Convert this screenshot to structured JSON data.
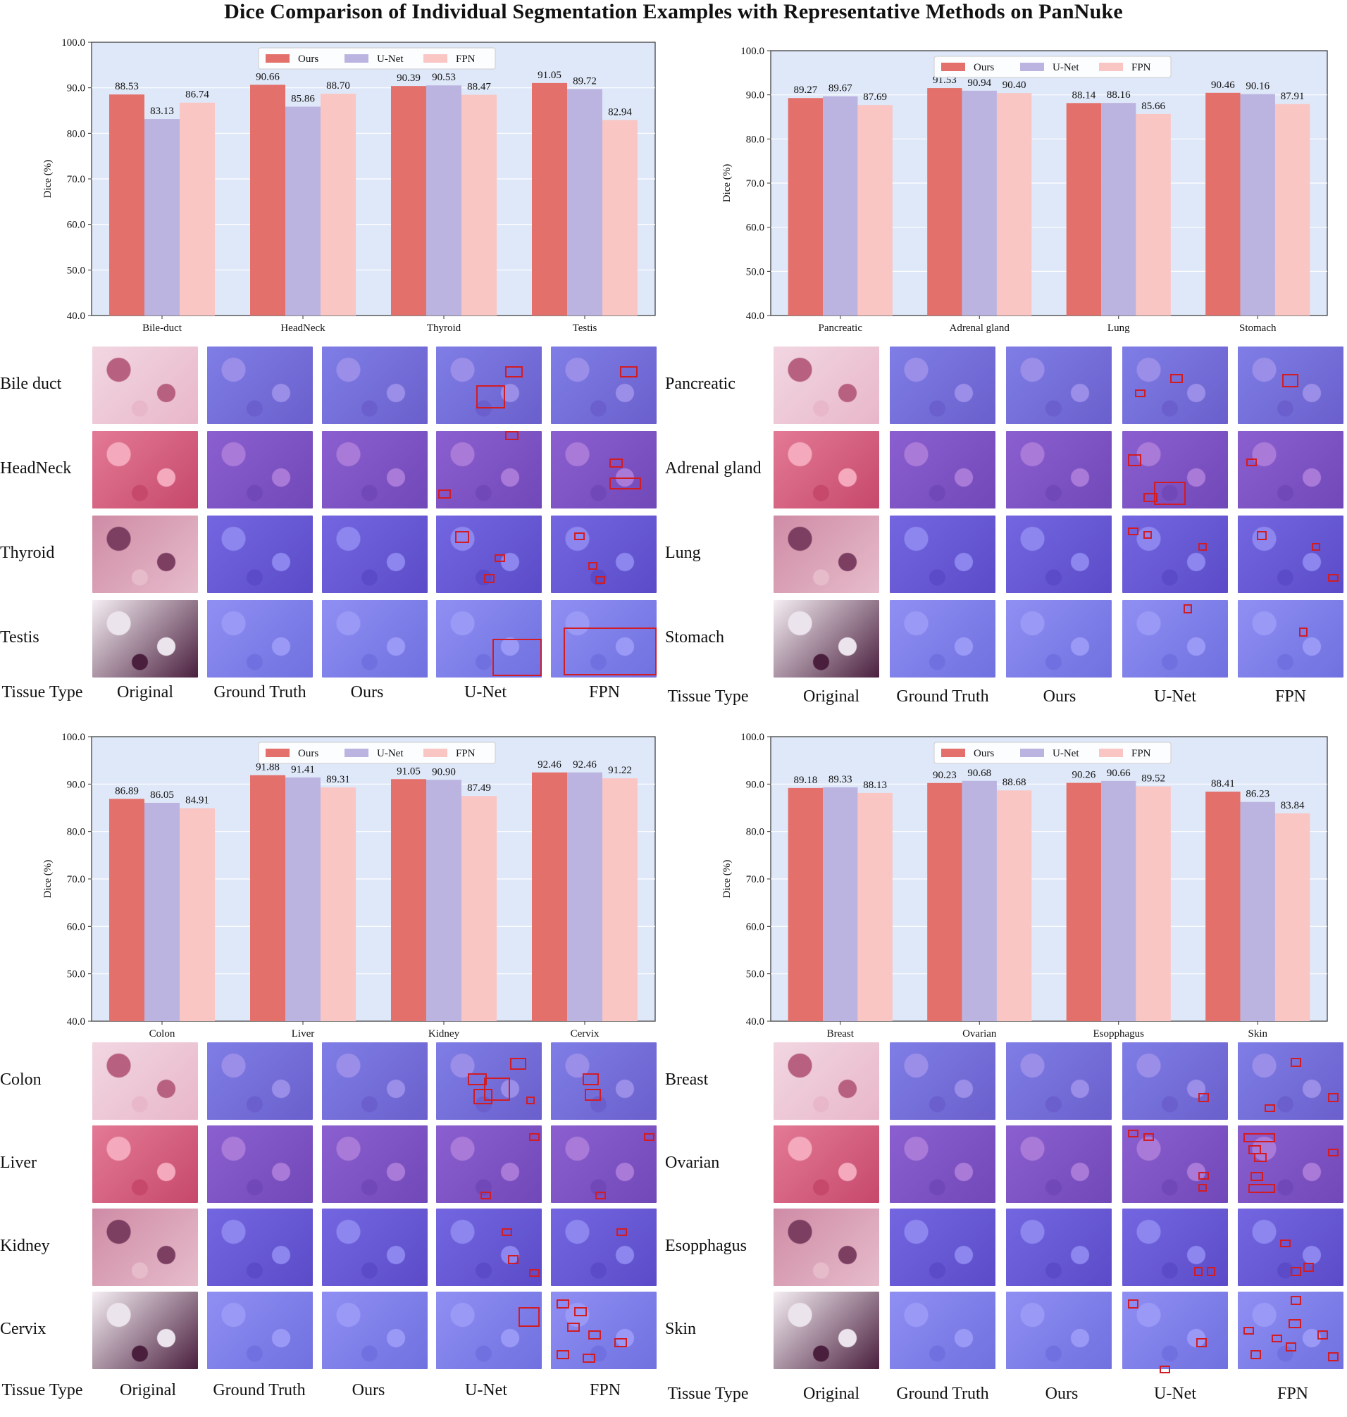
{
  "title": "Dice Comparison of Individual Segmentation Examples with Representative Methods on PanNuke",
  "colors": {
    "ours": "#e3706a",
    "unet": "#bbb4e0",
    "fpn": "#f9c6c4",
    "plot_bg": "#dfe8f8",
    "box": "#d11c24"
  },
  "legend": [
    "Ours",
    "U-Net",
    "FPN"
  ],
  "ylabel": "Dice (%)",
  "column_labels": [
    "Tissue Type",
    "Original",
    "Ground Truth",
    "Ours",
    "U-Net",
    "FPN"
  ],
  "chart_data": [
    {
      "type": "bar",
      "ylabel": "Dice (%)",
      "ylim": [
        40,
        100
      ],
      "yticks": [
        "40.0",
        "50.0",
        "60.0",
        "70.0",
        "80.0",
        "90.0",
        "100.0"
      ],
      "legend_position": "top-center",
      "categories": [
        "Bile-duct",
        "HeadNeck",
        "Thyroid",
        "Testis"
      ],
      "series": [
        {
          "name": "Ours",
          "values": [
            88.53,
            90.66,
            90.39,
            91.05
          ]
        },
        {
          "name": "U-Net",
          "values": [
            83.13,
            85.86,
            90.53,
            89.72
          ]
        },
        {
          "name": "FPN",
          "values": [
            86.74,
            88.7,
            88.47,
            82.94
          ]
        }
      ]
    },
    {
      "type": "bar",
      "ylabel": "Dice (%)",
      "ylim": [
        40,
        100
      ],
      "yticks": [
        "40.0",
        "50.0",
        "60.0",
        "70.0",
        "80.0",
        "90.0",
        "100.0"
      ],
      "legend_position": "top-center",
      "categories": [
        "Pancreatic",
        "Adrenal gland",
        "Lung",
        "Stomach"
      ],
      "series": [
        {
          "name": "Ours",
          "values": [
            89.27,
            91.53,
            88.14,
            90.46
          ]
        },
        {
          "name": "U-Net",
          "values": [
            89.67,
            90.94,
            88.16,
            90.16
          ]
        },
        {
          "name": "FPN",
          "values": [
            87.69,
            90.4,
            85.66,
            87.91
          ]
        }
      ]
    },
    {
      "type": "bar",
      "ylabel": "Dice (%)",
      "ylim": [
        40,
        100
      ],
      "yticks": [
        "40.0",
        "50.0",
        "60.0",
        "70.0",
        "80.0",
        "90.0",
        "100.0"
      ],
      "legend_position": "top-center",
      "categories": [
        "Colon",
        "Liver",
        "Kidney",
        "Cervix"
      ],
      "series": [
        {
          "name": "Ours",
          "values": [
            86.89,
            91.88,
            91.05,
            92.46
          ]
        },
        {
          "name": "U-Net",
          "values": [
            86.05,
            91.41,
            90.9,
            92.46
          ]
        },
        {
          "name": "FPN",
          "values": [
            84.91,
            89.31,
            87.49,
            91.22
          ]
        }
      ]
    },
    {
      "type": "bar",
      "ylabel": "Dice (%)",
      "ylim": [
        40,
        100
      ],
      "yticks": [
        "40.0",
        "50.0",
        "60.0",
        "70.0",
        "80.0",
        "90.0",
        "100.0"
      ],
      "legend_position": "top-center",
      "categories": [
        "Breast",
        "Ovarian",
        "Esopphagus",
        "Skin"
      ],
      "series": [
        {
          "name": "Ours",
          "values": [
            89.18,
            90.23,
            90.26,
            88.41
          ]
        },
        {
          "name": "U-Net",
          "values": [
            89.33,
            90.68,
            90.66,
            86.23
          ]
        },
        {
          "name": "FPN",
          "values": [
            88.13,
            88.68,
            89.52,
            83.84
          ]
        }
      ]
    }
  ],
  "tissue_rows": [
    [
      "Bile duct",
      "HeadNeck",
      "Thyroid",
      "Testis"
    ],
    [
      "Pancreatic",
      "Adrenal gland",
      "Lung",
      "Stomach"
    ],
    [
      "Colon",
      "Liver",
      "Kidney",
      "Cervix"
    ],
    [
      "Breast",
      "Ovarian",
      "Esopphagus",
      "Skin"
    ]
  ]
}
